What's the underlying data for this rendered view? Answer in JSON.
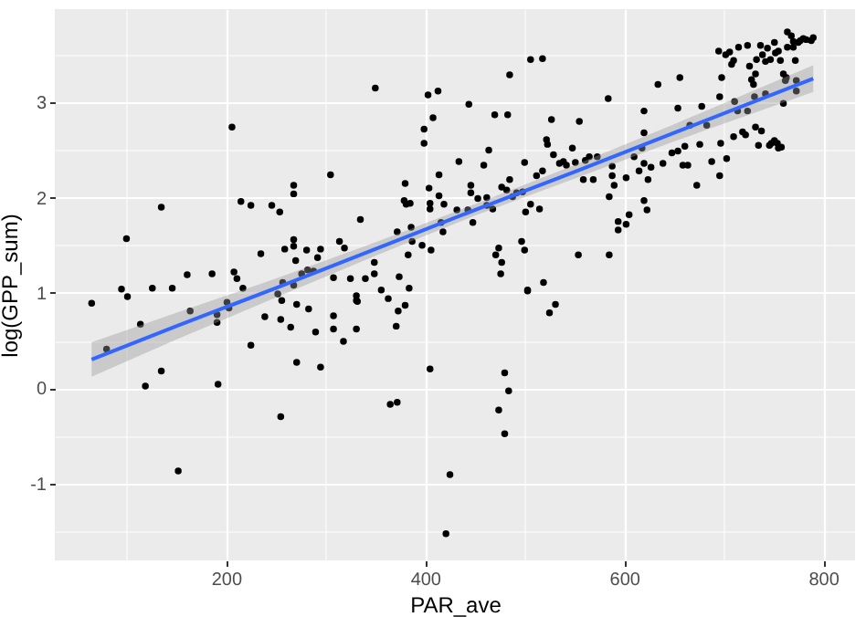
{
  "chart_data": {
    "type": "scatter",
    "xlabel": "PAR_ave",
    "ylabel": "log(GPP_sum)",
    "xlim": [
      28,
      832
    ],
    "ylim": [
      -1.81,
      3.98
    ],
    "xticks": [
      {
        "value": 100,
        "label": null
      },
      200,
      {
        "value": 300,
        "label": null
      },
      400,
      {
        "value": 500,
        "label": null
      },
      600,
      {
        "value": 700,
        "label": null
      },
      800
    ],
    "yticks": [
      {
        "value": -1.5,
        "label": null
      },
      -1,
      {
        "value": -0.5,
        "label": null
      },
      0,
      {
        "value": 0.5,
        "label": null
      },
      1,
      {
        "value": 1.5,
        "label": null
      },
      2,
      {
        "value": 2.5,
        "label": null
      },
      3,
      {
        "value": 3.5,
        "label": null
      }
    ],
    "grid": true,
    "series": [
      {
        "color": "#000000",
        "marker": "circle",
        "x": [
          65,
          95,
          101,
          100,
          126,
          135,
          146,
          161,
          186,
          206,
          208,
          211,
          215,
          225,
          217,
          201,
          235,
          246,
          254,
          259,
          268,
          268,
          268,
          268,
          270,
          257,
          252,
          268,
          276,
          281,
          282,
          288,
          295,
          292,
          305,
          308,
          314,
          319,
          325,
          335,
          340,
          349,
          350,
          349,
          356,
          363,
          331,
          332,
          372,
          374,
          380,
          379,
          381,
          385,
          383,
          387,
          397,
          386,
          384,
          399,
          399,
          403,
          408,
          413,
          404,
          405,
          405,
          414,
          414,
          419,
          406,
          416,
          418,
          380,
          80,
          114,
          119,
          135,
          152,
          164,
          191,
          191,
          192,
          203,
          225,
          239,
          255,
          255,
          256,
          265,
          271,
          271,
          283,
          290,
          295,
          308,
          308,
          318,
          331,
          331,
          365,
          372,
          371,
          373,
          405,
          425,
          421,
          480,
          484,
          474,
          480,
          525,
          531,
          503,
          434,
          444,
          446,
          446,
          432,
          443,
          448,
          453,
          459,
          462,
          464,
          470,
          474,
          477,
          476,
          471,
          477,
          482,
          485,
          485,
          483,
          488,
          492,
          498,
          500,
          497,
          500,
          503,
          501,
          506,
          506,
          518,
          512,
          518,
          515,
          519,
          523,
          522,
          527,
          529,
          535,
          539,
          542,
          548,
          551,
          555,
          559,
          561,
          565,
          569,
          573,
          554,
          584,
          585,
          585,
          588,
          588,
          590,
          594,
          594,
          602,
          605,
          602,
          610,
          615,
          618,
          620,
          620,
          620,
          623,
          624,
          627,
          634,
          639,
          648,
          654,
          654,
          656,
          659,
          664,
          661,
          666,
          673,
          676,
          678,
          683,
          688,
          695,
          696,
          696,
          698,
          697,
          702,
          703,
          708,
          706,
          710,
          710,
          711,
          715,
          714,
          719,
          722,
          724,
          724,
          726,
          728,
          730,
          731,
          732,
          732,
          733,
          735,
          738,
          737,
          739,
          742,
          742,
          744,
          746,
          748,
          751,
          754,
          755,
          758,
          747,
          751,
          752,
          755,
          757,
          760,
          760,
          763,
          764,
          764,
          768,
          770,
          770,
          772,
          773,
          775,
          777,
          780,
          783,
          788,
          790,
          773,
          762,
          462,
          468,
          620
        ],
        "values": [
          0.89,
          1.04,
          0.96,
          1.57,
          1.05,
          1.9,
          1.05,
          1.19,
          1.2,
          2.74,
          1.22,
          1.15,
          1.96,
          1.92,
          1.05,
          0.9,
          1.41,
          1.92,
          1.85,
          1.46,
          2.13,
          2.04,
          1.56,
          1.49,
          1.34,
          1.11,
          0.99,
          1.08,
          1.2,
          1.45,
          1.24,
          1.23,
          1.46,
          1.37,
          2.24,
          1.16,
          1.54,
          1.47,
          1.15,
          1.77,
          1.15,
          1.32,
          3.15,
          1.2,
          1.03,
          0.94,
          0.97,
          0.91,
          1.64,
          1.17,
          2.15,
          1.97,
          1.93,
          1.94,
          1.4,
          1.54,
          1.5,
          1.69,
          1.05,
          2.57,
          2.72,
          3.08,
          2.84,
          3.12,
          2.1,
          1.94,
          1.88,
          2.24,
          2.02,
          1.93,
          1.45,
          1.74,
          1.64,
          0.87,
          0.41,
          0.67,
          0.02,
          0.18,
          -0.87,
          0.81,
          0.69,
          0.77,
          0.04,
          0.84,
          0.45,
          0.75,
          0.72,
          -0.3,
          0.92,
          0.64,
          0.27,
          0.88,
          0.83,
          0.59,
          0.22,
          0.76,
          0.62,
          0.49,
          0.62,
          0.92,
          -0.17,
          -0.15,
          0.65,
          0.81,
          0.2,
          -0.91,
          -1.53,
          0.16,
          -0.03,
          -0.23,
          -0.48,
          0.79,
          0.88,
          1.02,
          2.38,
          2.98,
          2.13,
          2.05,
          1.87,
          1.87,
          1.74,
          1.99,
          2.34,
          2,
          2.5,
          2.87,
          1.47,
          1.32,
          1.2,
          1.4,
          2.11,
          2.08,
          2.19,
          3.29,
          2.87,
          2.01,
          2.05,
          2.06,
          2.37,
          1.54,
          1.45,
          1.03,
          1.85,
          1.93,
          3.45,
          3.46,
          2.23,
          2.28,
          1.88,
          1.11,
          2.56,
          2.61,
          2.82,
          2.45,
          2.36,
          2.38,
          2.34,
          2.52,
          2.37,
          2.8,
          2.19,
          2.39,
          2.43,
          2.19,
          2.43,
          1.4,
          3.04,
          1.4,
          2.01,
          2.23,
          2.33,
          2.13,
          1.75,
          1.66,
          1.72,
          1.82,
          2.21,
          2.43,
          2.28,
          2.52,
          2.68,
          2.91,
          2.36,
          1.87,
          2.19,
          2.32,
          3.19,
          2.36,
          2.47,
          2.49,
          2.94,
          3.26,
          2.34,
          2.34,
          2.54,
          2.76,
          2.13,
          2.56,
          2.96,
          2.76,
          2.38,
          3.54,
          2.23,
          3.06,
          3.26,
          2.57,
          3.5,
          2.41,
          3.4,
          3.53,
          3.44,
          2.64,
          3.01,
          3.58,
          2.91,
          2.69,
          2.66,
          2.91,
          3.6,
          3.38,
          3.24,
          3.19,
          3.06,
          3.3,
          2.74,
          3.45,
          2.55,
          2.7,
          3.6,
          3.5,
          3.43,
          3.09,
          3.57,
          2.55,
          2.57,
          2.6,
          2.57,
          2.52,
          2.53,
          3.45,
          3.63,
          3.52,
          3.54,
          3.44,
          3.3,
          2.99,
          3.26,
          3.74,
          3.58,
          3.7,
          3.58,
          3.64,
          3.44,
          3.23,
          3.63,
          3.65,
          3.67,
          3.66,
          3.65,
          3.68,
          3.12,
          3.23,
          1.92,
          1.88,
          1.97
        ]
      },
      {
        "type": "line",
        "color": "#3366ff",
        "marker": "none",
        "x": [
          65,
          150,
          250,
          350,
          450,
          550,
          650,
          790
        ],
        "values": [
          0.3,
          0.65,
          1.05,
          1.46,
          1.87,
          2.27,
          2.68,
          3.25
        ],
        "lower": [
          0.12,
          0.51,
          0.95,
          1.39,
          1.81,
          2.2,
          2.59,
          3.11
        ],
        "upper": [
          0.48,
          0.79,
          1.15,
          1.53,
          1.93,
          2.34,
          2.77,
          3.39
        ]
      }
    ]
  }
}
